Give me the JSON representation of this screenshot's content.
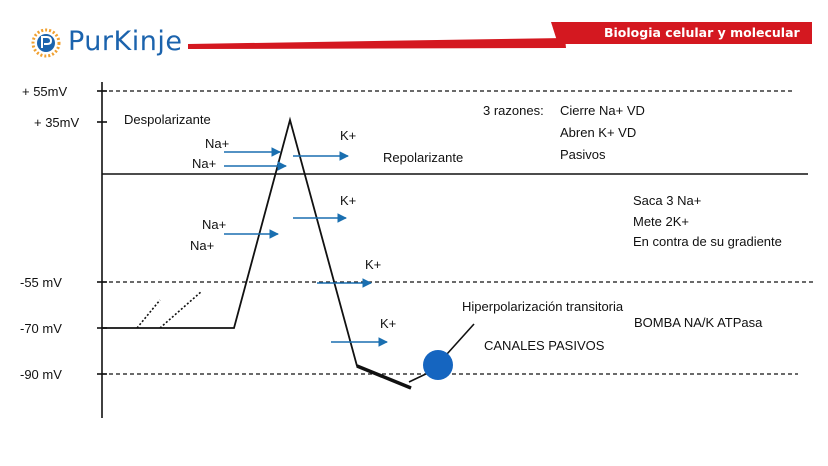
{
  "header": {
    "brand": "PurKinje",
    "title": "Biologia celular y molecular",
    "accent_color": "#d41820",
    "brand_color": "#1b63ad"
  },
  "axis": {
    "mv55": "+ 55mV",
    "mv35": "+ 35mV",
    "mvm55": "-55 mV",
    "mvm70": "-70 mV",
    "mvm90": "-90 mV"
  },
  "labels": {
    "despolarizante": "Despolarizante",
    "repolarizante": "Repolarizante",
    "razones_title": "3 razones:",
    "razones": [
      "Cierre Na+ VD",
      "Abren K+ VD",
      "Pasivos"
    ],
    "bomba_lines": [
      "Saca 3 Na+",
      "Mete 2K+",
      "En contra de su gradiente"
    ],
    "hiper": "Hiperpolarización transitoria",
    "bomba": "BOMBA NA/K ATPasa",
    "canales": "CANALES PASIVOS"
  },
  "ions": {
    "na1": "Na+",
    "na2": "Na+",
    "na3": "Na+",
    "na4": "Na+",
    "k1": "K+",
    "k2": "K+",
    "k3": "K+",
    "k4": "K+"
  },
  "colors": {
    "arrow": "#1a6fb0",
    "pump": "#1565c0",
    "line": "#111111"
  }
}
